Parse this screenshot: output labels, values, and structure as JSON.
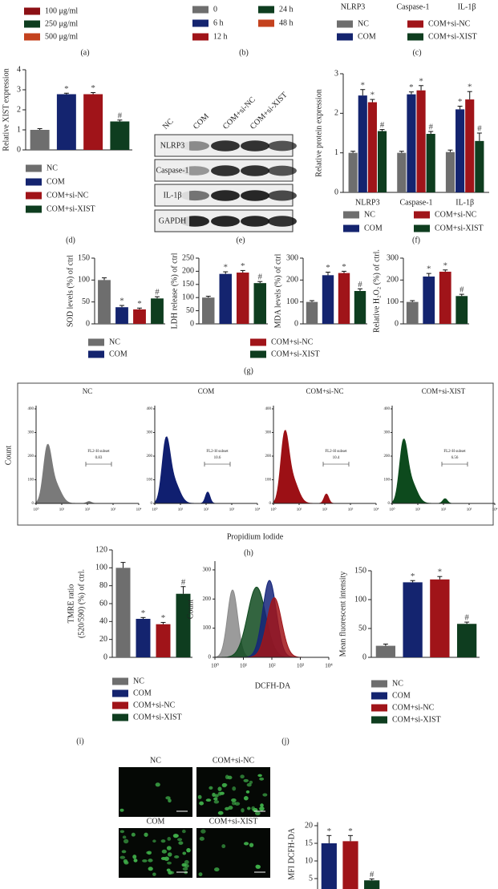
{
  "panel_labels": [
    "(a)",
    "(b)",
    "(c)",
    "(d)",
    "(e)",
    "(f)",
    "(g)",
    "(h)",
    "(i)",
    "(j)"
  ],
  "panel_c_categories": [
    "NLRP3",
    "Caspase-1",
    "IL-1β"
  ],
  "legends": [
    {
      "items": [
        {
          "name": "100 μg/ml",
          "color": "#8c1015"
        },
        {
          "name": "250 μg/ml",
          "color": "#0e3d1f"
        },
        {
          "name": "500 μg/ml",
          "color": "#c4421e"
        }
      ]
    },
    {
      "items": [
        {
          "name": "0",
          "color": "#6e6e6e"
        },
        {
          "name": "6 h",
          "color": "#14246f"
        },
        {
          "name": "12 h",
          "color": "#a01419"
        },
        {
          "name": "24 h",
          "color": "#0e3d1f"
        },
        {
          "name": "48 h",
          "color": "#c4421e"
        }
      ]
    },
    {
      "items": [
        {
          "name": "NC",
          "color": "#6e6e6e"
        },
        {
          "name": "COM",
          "color": "#14246f"
        },
        {
          "name": "COM+si-NC",
          "color": "#a01419"
        },
        {
          "name": "COM+si-XIST",
          "color": "#0e3d1f"
        }
      ]
    },
    {
      "items": [
        {
          "name": "NC",
          "color": "#6e6e6e"
        },
        {
          "name": "COM",
          "color": "#14246f"
        },
        {
          "name": "COM+si-NC",
          "color": "#a01419"
        },
        {
          "name": "COM+si-XIST",
          "color": "#0e3d1f"
        }
      ]
    },
    {
      "items": [
        {
          "name": "NC",
          "color": "#6e6e6e"
        },
        {
          "name": "COM",
          "color": "#14246f"
        },
        {
          "name": "COM+si-NC",
          "color": "#a01419"
        },
        {
          "name": "COM+si-XIST",
          "color": "#0e3d1f"
        }
      ]
    },
    {
      "items": [
        {
          "name": "NC",
          "color": "#6e6e6e"
        },
        {
          "name": "COM",
          "color": "#14246f"
        },
        {
          "name": "COM+si-NC",
          "color": "#a01419"
        },
        {
          "name": "COM+si-XIST",
          "color": "#0e3d1f"
        }
      ]
    },
    {
      "items": [
        {
          "name": "NC",
          "color": "#6e6e6e"
        },
        {
          "name": "COM",
          "color": "#14246f"
        },
        {
          "name": "COM+si-NC",
          "color": "#a01419"
        },
        {
          "name": "COM+si-XIST",
          "color": "#0e3d1f"
        }
      ]
    },
    {
      "items": [
        {
          "name": "NC",
          "color": "#6e6e6e"
        },
        {
          "name": "COM",
          "color": "#14246f"
        },
        {
          "name": "COM+si-NC",
          "color": "#a01419"
        },
        {
          "name": "COM+si-XIST",
          "color": "#0e3d1f"
        }
      ]
    }
  ],
  "chart_data": [
    {
      "type": "bar",
      "ylabel": "Relative XIST expression",
      "ylim": [
        0,
        4
      ],
      "yticks": [
        0,
        1,
        2,
        3,
        4
      ],
      "values": [
        1.0,
        2.78,
        2.78,
        1.42
      ],
      "errors": [
        0.06,
        0.05,
        0.08,
        0.07
      ],
      "colors": [
        "#6e6e6e",
        "#14246f",
        "#a01419",
        "#0e3d1f"
      ],
      "markers": [
        null,
        "*",
        "*",
        "#"
      ]
    },
    {
      "type": "grouped_bar",
      "ylabel": "Relative protein expression",
      "ylim": [
        0,
        3
      ],
      "yticks": [
        0,
        1,
        2,
        3
      ],
      "categories": [
        "NLRP3",
        "Caspase-1",
        "IL-1β"
      ],
      "series": [
        {
          "color": "#6e6e6e",
          "values": [
            1.0,
            1.0,
            1.02
          ],
          "errors": [
            0.04,
            0.04,
            0.05
          ],
          "markers": [
            null,
            null,
            null
          ]
        },
        {
          "color": "#14246f",
          "values": [
            2.45,
            2.48,
            2.1
          ],
          "errors": [
            0.15,
            0.06,
            0.08
          ],
          "markers": [
            "*",
            "*",
            "*"
          ]
        },
        {
          "color": "#a01419",
          "values": [
            2.28,
            2.58,
            2.35
          ],
          "errors": [
            0.07,
            0.12,
            0.2
          ],
          "markers": [
            "*",
            "*",
            "*"
          ]
        },
        {
          "color": "#0e3d1f",
          "values": [
            1.55,
            1.48,
            1.3
          ],
          "errors": [
            0.04,
            0.06,
            0.2
          ],
          "markers": [
            "#",
            "#",
            "#"
          ]
        }
      ]
    },
    {
      "type": "bar",
      "ylabel": "SOD levels (%) of ctrl",
      "ylim": [
        0,
        150
      ],
      "yticks": [
        0,
        50,
        100,
        150
      ],
      "values": [
        100,
        38,
        33,
        58
      ],
      "errors": [
        5,
        4,
        3,
        4
      ],
      "colors": [
        "#6e6e6e",
        "#14246f",
        "#a01419",
        "#0e3d1f"
      ],
      "markers": [
        null,
        "*",
        "*",
        "#"
      ]
    },
    {
      "type": "bar",
      "ylabel": "LDH release (%) of ctrl",
      "ylim": [
        0,
        250
      ],
      "yticks": [
        0,
        50,
        100,
        150,
        200,
        250
      ],
      "values": [
        100,
        190,
        195,
        155
      ],
      "errors": [
        5,
        8,
        8,
        6
      ],
      "colors": [
        "#6e6e6e",
        "#14246f",
        "#a01419",
        "#0e3d1f"
      ],
      "markers": [
        null,
        "*",
        "*",
        "#"
      ]
    },
    {
      "type": "bar",
      "ylabel": "MDA levels (%) of ctrl",
      "ylim": [
        0,
        300
      ],
      "yticks": [
        0,
        100,
        200,
        300
      ],
      "values": [
        100,
        222,
        232,
        150
      ],
      "errors": [
        6,
        14,
        8,
        10
      ],
      "colors": [
        "#6e6e6e",
        "#14246f",
        "#a01419",
        "#0e3d1f"
      ],
      "markers": [
        null,
        "*",
        "*",
        "#"
      ]
    },
    {
      "type": "bar",
      "ylabel": "Relative H₂O₂ (%) of ctrl.",
      "ylim": [
        0,
        300
      ],
      "yticks": [
        0,
        100,
        200,
        300
      ],
      "values": [
        100,
        216,
        238,
        127
      ],
      "errors": [
        6,
        14,
        8,
        8
      ],
      "colors": [
        "#6e6e6e",
        "#14246f",
        "#a01419",
        "#0e3d1f"
      ],
      "markers": [
        null,
        "*",
        "*",
        "#"
      ]
    },
    {
      "type": "bar",
      "ylabel": [
        "TMRE ratio",
        "(520/590) (%) of ctrl."
      ],
      "ylim": [
        0,
        120
      ],
      "yticks": [
        0,
        20,
        40,
        60,
        80,
        100,
        120
      ],
      "values": [
        100,
        43,
        37,
        71
      ],
      "errors": [
        6,
        1.5,
        2,
        8
      ],
      "colors": [
        "#6e6e6e",
        "#14246f",
        "#a01419",
        "#0e3d1f"
      ],
      "markers": [
        null,
        "*",
        "*",
        "#"
      ]
    },
    {
      "type": "bar",
      "ylabel": "Mean fluorescent intensity",
      "ylim": [
        0,
        150
      ],
      "yticks": [
        0,
        50,
        100,
        150
      ],
      "values": [
        20,
        130,
        135,
        58
      ],
      "errors": [
        3,
        3,
        5,
        3
      ],
      "colors": [
        "#6e6e6e",
        "#14246f",
        "#a01419",
        "#0e3d1f"
      ],
      "markers": [
        null,
        "*",
        "*",
        "#"
      ]
    },
    {
      "type": "bar",
      "ylabel": "MFI DCFH-DA",
      "ylim": [
        0,
        21
      ],
      "yticks": [
        5,
        10,
        15,
        20
      ],
      "values": [
        15,
        15.6,
        4.5
      ],
      "errors": [
        2.2,
        1.6,
        0.4
      ],
      "colors": [
        "#14246f",
        "#a01419",
        "#0e3d1f"
      ],
      "markers": [
        "*",
        "*",
        "#"
      ]
    }
  ],
  "blot": {
    "lanes": [
      "NC",
      "COM",
      "COM+si-NC",
      "COM+si-XIST"
    ],
    "rows": [
      "NLRP3",
      "Caspase-1",
      "IL-1β",
      "GAPDH"
    ]
  },
  "flow": {
    "ylabel": "Count",
    "xlabel": "Propidium Iodide",
    "ylim": [
      0,
      400
    ],
    "yticks": [
      0,
      100,
      200,
      300,
      400
    ],
    "xticks": [
      "10⁰",
      "10¹",
      "10²",
      "10³",
      "10⁴"
    ],
    "plots": [
      {
        "title": "NC",
        "gate_label": "FL2-H subset",
        "gate_value": "0.83"
      },
      {
        "title": "COM",
        "gate_label": "FL2-H subset",
        "gate_value": "10.6"
      },
      {
        "title": "COM+si-NC",
        "gate_label": "FL2-H subset",
        "gate_value": "10.4"
      },
      {
        "title": "COM+si-XIST",
        "gate_label": "FL2-H subset",
        "gate_value": "6.56"
      }
    ]
  },
  "dcfh_histogram": {
    "ylabel": "Count",
    "xlabel": "DCFH-DA",
    "ylim": [
      0,
      330
    ],
    "yticks": [
      0,
      100,
      200,
      300
    ],
    "xticks": [
      "10⁰",
      "10¹",
      "10²",
      "10³",
      "10⁴"
    ]
  },
  "images": {
    "labels": [
      "NC",
      "COM+si-NC",
      "COM",
      "COM+si-XIST"
    ]
  }
}
